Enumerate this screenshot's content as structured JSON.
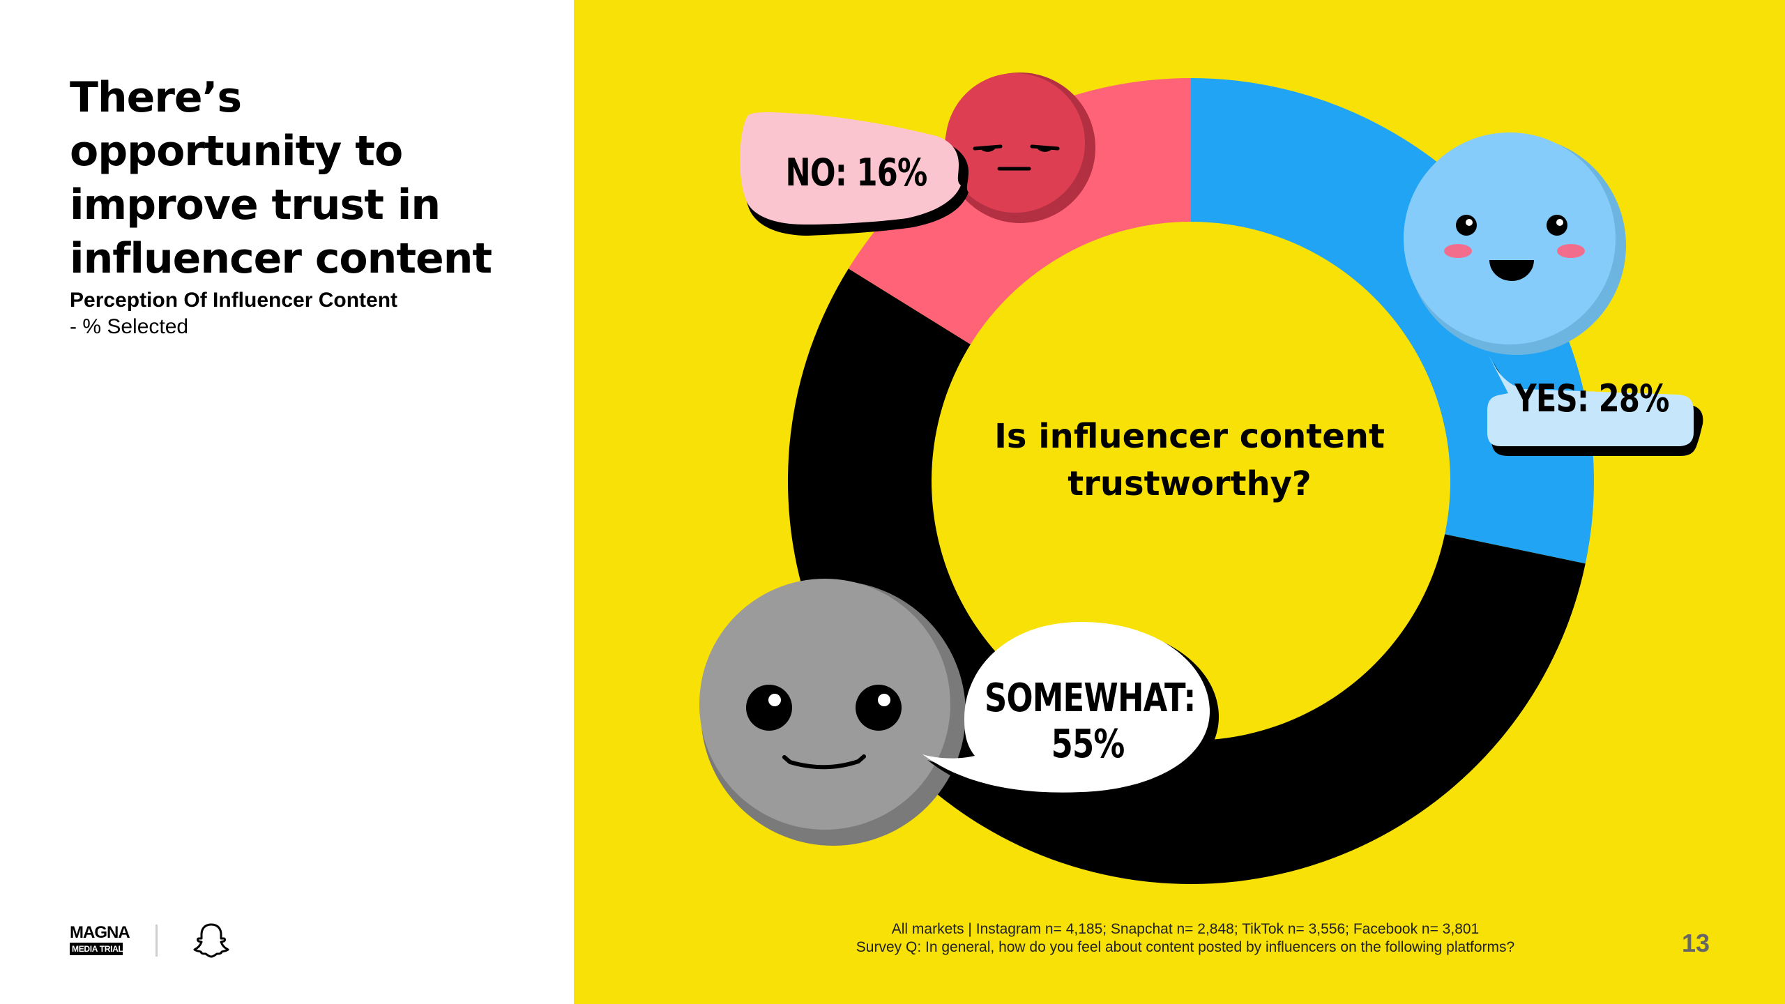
{
  "slide": {
    "title": "There’s opportunity to improve trust in influencer content",
    "subtitle": "Perception Of Influencer Content",
    "subtitle_note": "- % Selected",
    "page_number": "13",
    "footnote_line1": "All markets | Instagram n= 4,185; Snapchat n= 2,848; TikTok n= 3,556; Facebook n= 3,801",
    "footnote_line2": "Survey Q: In general, how do you feel about content posted by influencers on the following platforms?",
    "logo": {
      "brand_line1": "MAGNA",
      "brand_line2": "MEDIA TRIALS"
    },
    "colors": {
      "panel_bg": "#f8e106",
      "yes": "#20a4f3",
      "somewhat": "#000000",
      "no": "#ff6377"
    },
    "icons": {
      "yes_face": "happy-face-icon",
      "somewhat_face": "neutral-face-icon",
      "no_face": "annoyed-face-icon",
      "partner_logo": "ghost-icon"
    }
  },
  "chart_data": {
    "type": "pie",
    "variant": "donut",
    "title": "Is influencer content trustworthy?",
    "categories": [
      "YES",
      "SOMEWHAT",
      "NO"
    ],
    "values": [
      28,
      55,
      16
    ],
    "unit": "%",
    "labels": [
      "YES: 28%",
      "SOMEWHAT:",
      "55%",
      "NO: 16%"
    ],
    "colors": [
      "#20a4f3",
      "#000000",
      "#ff6377"
    ],
    "start_angle": "12 o'clock, clockwise"
  }
}
